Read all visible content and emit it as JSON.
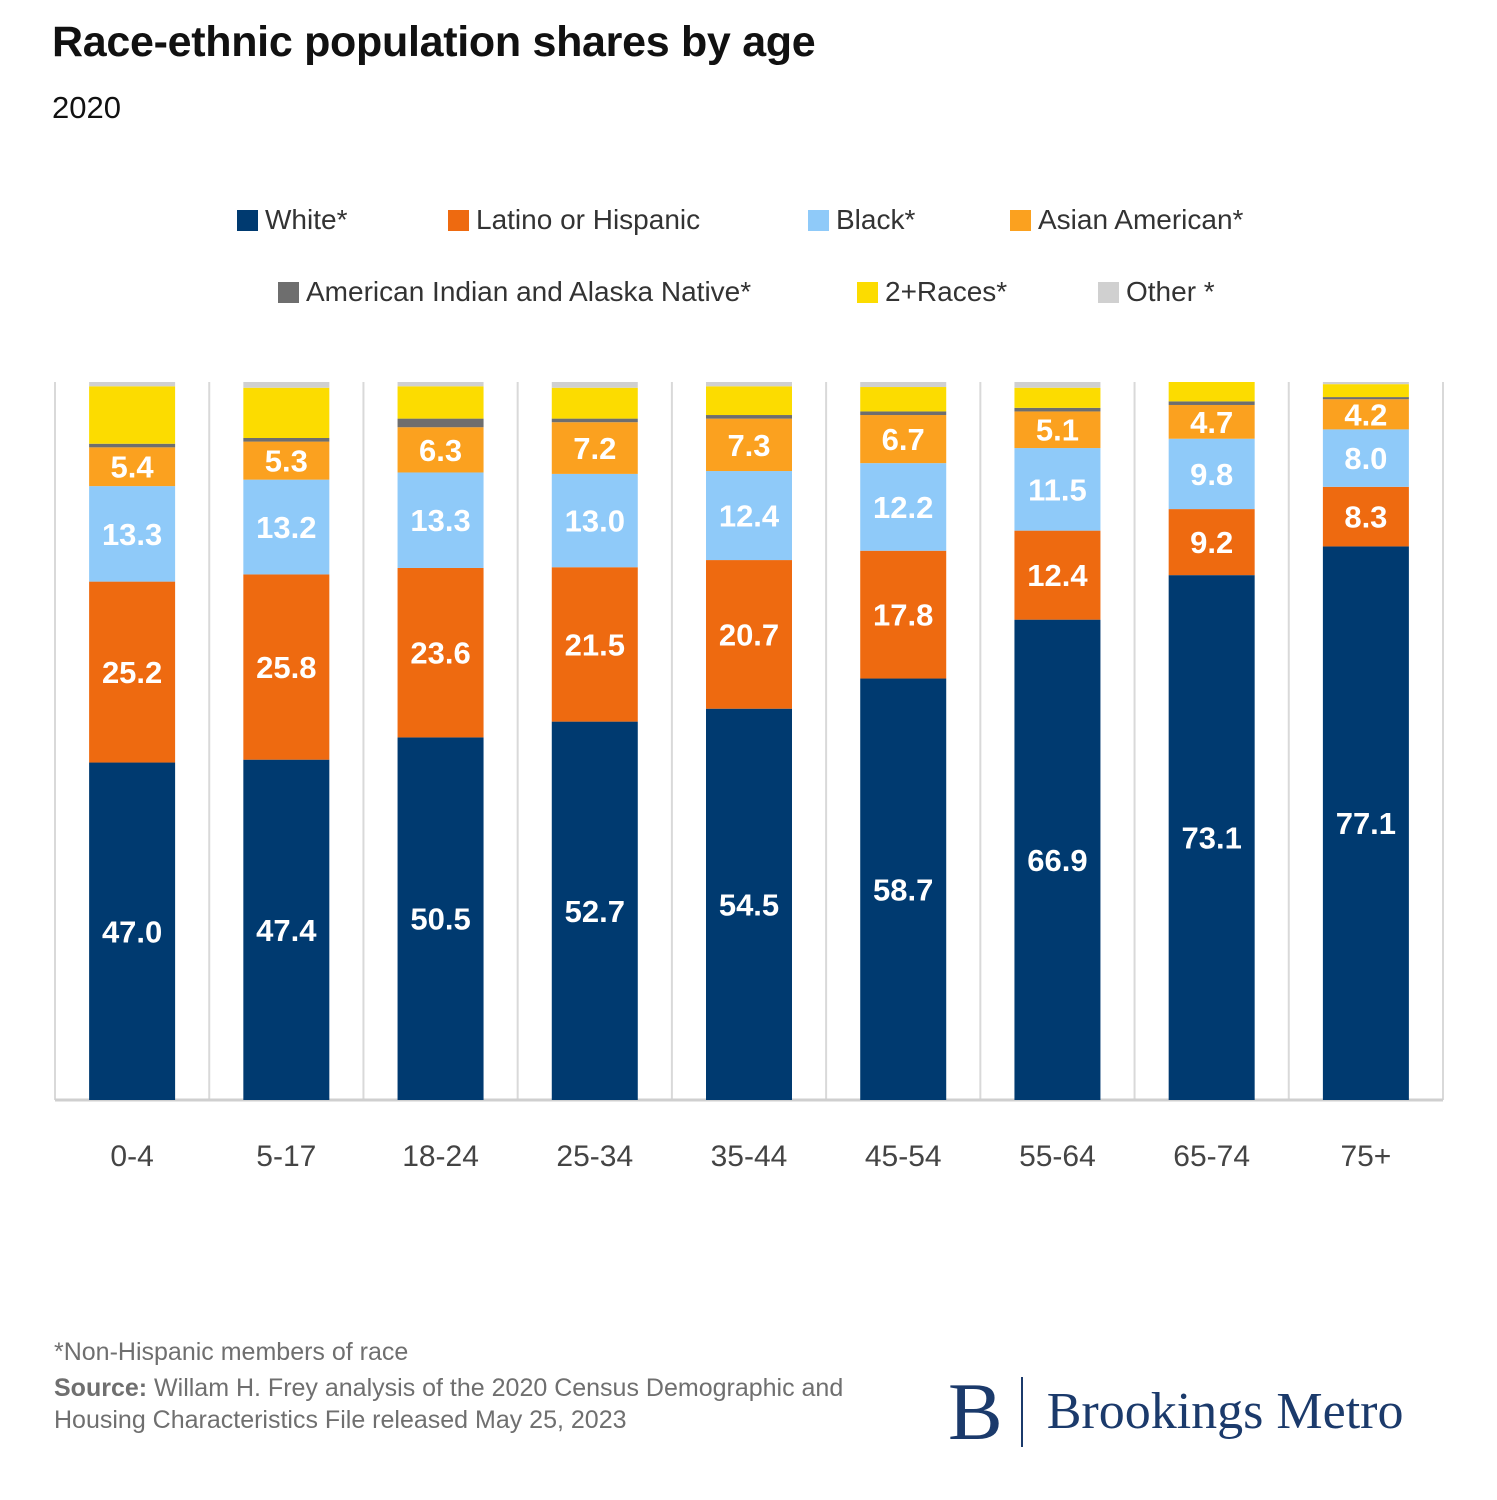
{
  "header": {
    "title": "Race-ethnic population shares by age",
    "subtitle": "2020"
  },
  "legend": {
    "items": [
      {
        "label": "White*",
        "color": "#003a70"
      },
      {
        "label": "Latino or Hispanic",
        "color": "#ee6a10"
      },
      {
        "label": "Black*",
        "color": "#8fcaf9"
      },
      {
        "label": "Asian American*",
        "color": "#fba11f"
      },
      {
        "label": "American Indian and Alaska Native*",
        "color": "#6e6e6e"
      },
      {
        "label": "2+Races*",
        "color": "#fcdc00"
      },
      {
        "label": "Other *",
        "color": "#d0d0d0"
      }
    ]
  },
  "chart_data": {
    "type": "bar",
    "stacked": true,
    "title": "Race-ethnic population shares by age",
    "subtitle": "2020",
    "xlabel": "",
    "ylabel": "",
    "ylim": [
      0,
      100
    ],
    "grid": false,
    "legend_position": "top",
    "categories": [
      "0-4",
      "5-17",
      "18-24",
      "25-34",
      "35-44",
      "45-54",
      "55-64",
      "65-74",
      "75+"
    ],
    "series": [
      {
        "name": "White*",
        "color": "#003a70",
        "values": [
          47.0,
          47.4,
          50.5,
          52.7,
          54.5,
          58.7,
          66.9,
          73.1,
          77.1
        ],
        "show_labels": true
      },
      {
        "name": "Latino or Hispanic",
        "color": "#ee6a10",
        "values": [
          25.2,
          25.8,
          23.6,
          21.5,
          20.7,
          17.8,
          12.4,
          9.2,
          8.3
        ],
        "show_labels": true
      },
      {
        "name": "Black*",
        "color": "#8fcaf9",
        "values": [
          13.3,
          13.2,
          13.3,
          13.0,
          12.4,
          12.2,
          11.5,
          9.8,
          8.0
        ],
        "show_labels": true
      },
      {
        "name": "Asian American*",
        "color": "#fba11f",
        "values": [
          5.4,
          5.3,
          6.3,
          7.2,
          7.3,
          6.7,
          5.1,
          4.7,
          4.2
        ],
        "show_labels": true
      },
      {
        "name": "American Indian and Alaska Native*",
        "color": "#6e6e6e",
        "values": [
          0.5,
          0.5,
          1.2,
          0.5,
          0.5,
          0.5,
          0.5,
          0.5,
          0.3
        ],
        "show_labels": false
      },
      {
        "name": "2+Races*",
        "color": "#fcdc00",
        "values": [
          8.0,
          7.0,
          4.5,
          4.3,
          4.0,
          3.4,
          2.8,
          2.7,
          1.8
        ],
        "show_labels": false
      },
      {
        "name": "Other *",
        "color": "#d0d0d0",
        "values": [
          0.6,
          0.8,
          0.6,
          0.8,
          0.6,
          0.7,
          0.8,
          0.0,
          0.3
        ],
        "show_labels": false
      }
    ]
  },
  "footer": {
    "footnote": "*Non-Hispanic members of race",
    "source_label": "Source:",
    "source_text": "Willam H. Frey analysis of the 2020 Census Demographic and Housing Characteristics File released May 25, 2023",
    "logo_mark": "B",
    "logo_text": "Brookings Metro"
  }
}
